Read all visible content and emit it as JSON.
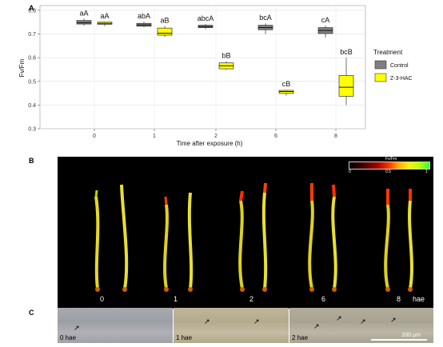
{
  "panels": {
    "a": "A",
    "b": "B",
    "c": "C"
  },
  "chart_data": {
    "type": "box",
    "ylabel": "Fv/Fm",
    "xlabel": "Time after exposure (h)",
    "categories": [
      "0",
      "1",
      "2",
      "6",
      "8"
    ],
    "ylim": [
      0.3,
      0.82
    ],
    "yticks": [
      0.3,
      0.4,
      0.5,
      0.6,
      0.7,
      0.8
    ],
    "legend": {
      "title": "Treatment",
      "position": "right"
    },
    "series": [
      {
        "name": "Control",
        "color": "#7f7f7f",
        "boxes": [
          {
            "min": 0.735,
            "q1": 0.742,
            "median": 0.748,
            "q3": 0.757,
            "max": 0.765,
            "label": "aA"
          },
          {
            "min": 0.728,
            "q1": 0.733,
            "median": 0.738,
            "q3": 0.745,
            "max": 0.752,
            "label": "abA"
          },
          {
            "min": 0.72,
            "q1": 0.727,
            "median": 0.731,
            "q3": 0.737,
            "max": 0.742,
            "label": "abcA"
          },
          {
            "min": 0.7,
            "q1": 0.718,
            "median": 0.727,
            "q3": 0.737,
            "max": 0.745,
            "label": "bcA"
          },
          {
            "min": 0.685,
            "q1": 0.702,
            "median": 0.715,
            "q3": 0.727,
            "max": 0.736,
            "label": "cA"
          }
        ]
      },
      {
        "name": "Z-3-HAC",
        "color": "#ffff00",
        "boxes": [
          {
            "min": 0.733,
            "q1": 0.741,
            "median": 0.745,
            "q3": 0.75,
            "max": 0.752,
            "label": "aA"
          },
          {
            "min": 0.688,
            "q1": 0.695,
            "median": 0.703,
            "q3": 0.725,
            "max": 0.734,
            "label": "aB"
          },
          {
            "min": 0.548,
            "q1": 0.553,
            "median": 0.566,
            "q3": 0.578,
            "max": 0.585,
            "label": "bB"
          },
          {
            "min": 0.44,
            "q1": 0.449,
            "median": 0.457,
            "q3": 0.462,
            "max": 0.465,
            "label": "cB"
          },
          {
            "min": 0.4,
            "q1": 0.437,
            "median": 0.475,
            "q3": 0.525,
            "max": 0.6,
            "label": "bcB"
          }
        ]
      }
    ]
  },
  "panel_b": {
    "time_labels": [
      "0",
      "1",
      "2",
      "6",
      "8"
    ],
    "unit_label": "hae",
    "colorbar": {
      "title": "Fv/Fm",
      "min": "0",
      "mid": "0.5",
      "max": "1"
    }
  },
  "panel_c": {
    "labels": [
      "0 hae",
      "1 hae",
      "2 hae"
    ],
    "scale": "200 µm",
    "arrow_glyph": "↗"
  }
}
